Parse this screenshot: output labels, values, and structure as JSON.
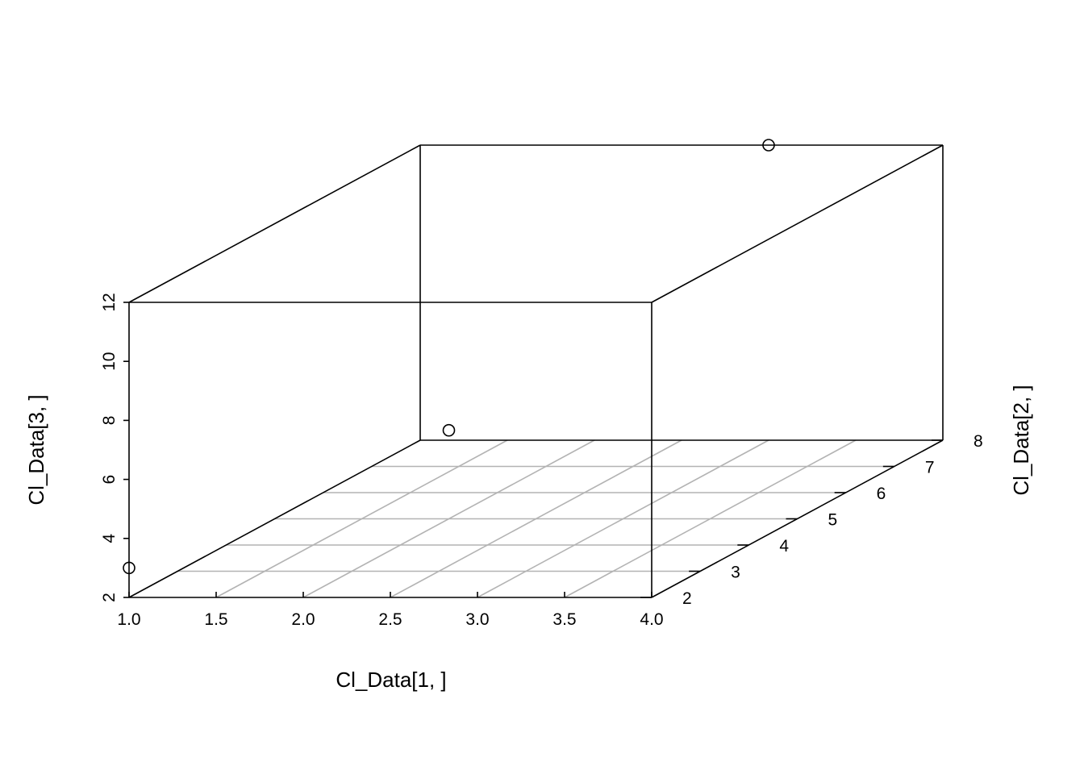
{
  "chart_data": {
    "type": "scatter",
    "subtype": "3d-scatter",
    "title": "",
    "xlabel": "Cl_Data[1, ]",
    "ylabel": "Cl_Data[2, ]",
    "zlabel": "Cl_Data[3, ]",
    "xlim": [
      1.0,
      4.0
    ],
    "ylim": [
      2,
      8
    ],
    "zlim": [
      2,
      12
    ],
    "x_ticks": [
      "1.0",
      "1.5",
      "2.0",
      "2.5",
      "3.0",
      "3.5",
      "4.0"
    ],
    "y_ticks": [
      "2",
      "3",
      "4",
      "5",
      "6",
      "7",
      "8"
    ],
    "z_ticks": [
      "2",
      "4",
      "6",
      "8",
      "10",
      "12"
    ],
    "grid": "floor",
    "grid_color": "#b3b3b3",
    "box_color": "#000000",
    "point_color": "#000000",
    "point_marker": "open-circle",
    "points": [
      {
        "x": 1.0,
        "y": 2.0,
        "z": 3.0
      },
      {
        "x": 2.0,
        "y": 5.0,
        "z": 5.0
      },
      {
        "x": 3.0,
        "y": 8.0,
        "z": 12.0
      }
    ]
  }
}
